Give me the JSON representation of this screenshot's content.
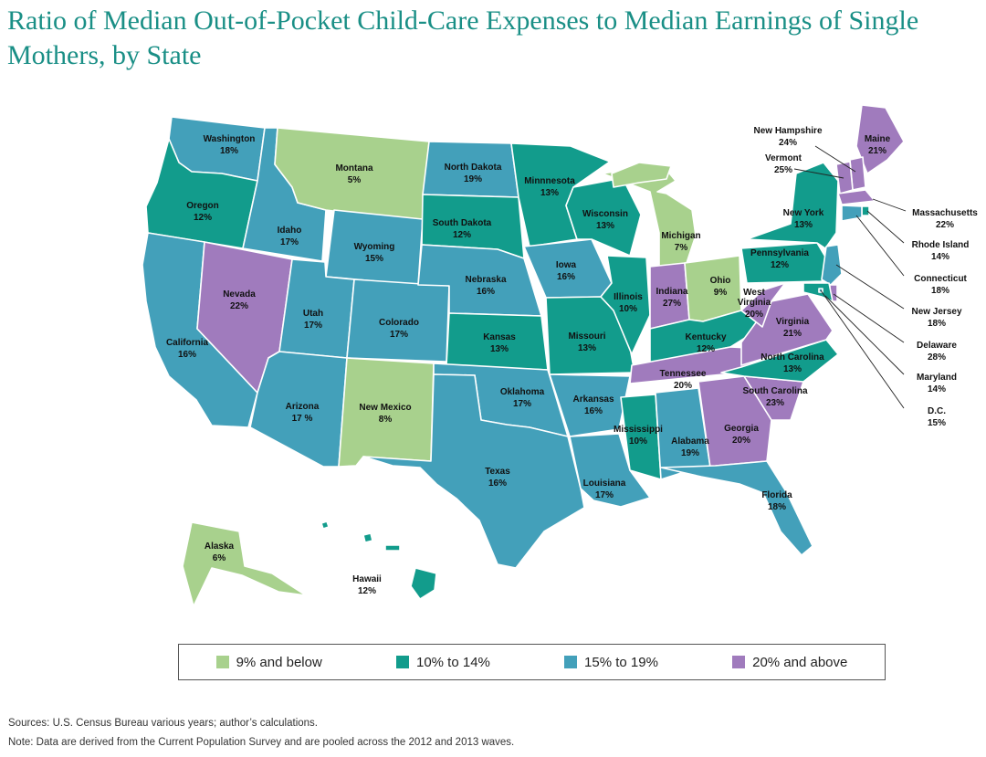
{
  "title": "Ratio of Median Out-of-Pocket Child-Care Expenses to Median Earnings of Single Mothers, by State",
  "colors": {
    "low": "#a8d18d",
    "mid_low": "#129c8c",
    "mid_high": "#43a0ba",
    "high": "#a07bbd"
  },
  "legend": [
    {
      "label": "9% and below",
      "color_key": "low"
    },
    {
      "label": "10% to 14%",
      "color_key": "mid_low"
    },
    {
      "label": "15% to 19%",
      "color_key": "mid_high"
    },
    {
      "label": "20% and above",
      "color_key": "high"
    }
  ],
  "states": [
    {
      "id": "WA",
      "name": "Washington",
      "value": "18%"
    },
    {
      "id": "OR",
      "name": "Oregon",
      "value": "12%"
    },
    {
      "id": "CA",
      "name": "California",
      "value": "16%"
    },
    {
      "id": "ID",
      "name": "Idaho",
      "value": "17%"
    },
    {
      "id": "NV",
      "name": "Nevada",
      "value": "22%"
    },
    {
      "id": "MT",
      "name": "Montana",
      "value": "5%"
    },
    {
      "id": "WY",
      "name": "Wyoming",
      "value": "15%"
    },
    {
      "id": "UT",
      "name": "Utah",
      "value": "17%"
    },
    {
      "id": "AZ",
      "name": "Arizona",
      "value": "17 %"
    },
    {
      "id": "CO",
      "name": "Colorado",
      "value": "17%"
    },
    {
      "id": "NM",
      "name": "New Mexico",
      "value": "8%"
    },
    {
      "id": "ND",
      "name": "North Dakota",
      "value": "19%"
    },
    {
      "id": "SD",
      "name": "South Dakota",
      "value": "12%"
    },
    {
      "id": "NE",
      "name": "Nebraska",
      "value": "16%"
    },
    {
      "id": "KS",
      "name": "Kansas",
      "value": "13%"
    },
    {
      "id": "OK",
      "name": "Oklahoma",
      "value": "17%"
    },
    {
      "id": "TX",
      "name": "Texas",
      "value": "16%"
    },
    {
      "id": "MN",
      "name": "Minnnesota",
      "value": "13%"
    },
    {
      "id": "IA",
      "name": "Iowa",
      "value": "16%"
    },
    {
      "id": "MO",
      "name": "Missouri",
      "value": "13%"
    },
    {
      "id": "AR",
      "name": "Arkansas",
      "value": "16%"
    },
    {
      "id": "LA",
      "name": "Louisiana",
      "value": "17%"
    },
    {
      "id": "WI",
      "name": "Wisconsin",
      "value": "13%"
    },
    {
      "id": "IL",
      "name": "Illinois",
      "value": "10%"
    },
    {
      "id": "MI",
      "name": "Michigan",
      "value": "7%"
    },
    {
      "id": "IN",
      "name": "Indiana",
      "value": "27%"
    },
    {
      "id": "OH",
      "name": "Ohio",
      "value": "9%"
    },
    {
      "id": "KY",
      "name": "Kentucky",
      "value": "12%"
    },
    {
      "id": "TN",
      "name": "Tennessee",
      "value": "20%"
    },
    {
      "id": "MS",
      "name": "Mississippi",
      "value": "10%"
    },
    {
      "id": "AL",
      "name": "Alabama",
      "value": "19%"
    },
    {
      "id": "GA",
      "name": "Georgia",
      "value": "20%"
    },
    {
      "id": "FL",
      "name": "Florida",
      "value": "18%"
    },
    {
      "id": "SC",
      "name": "South Carolina",
      "value": "23%"
    },
    {
      "id": "NC",
      "name": "North Carolina",
      "value": "13%"
    },
    {
      "id": "VA",
      "name": "Virginia",
      "value": "21%"
    },
    {
      "id": "WV",
      "name": "West Virginia",
      "value": "20%"
    },
    {
      "id": "PA",
      "name": "Pennsylvania",
      "value": "12%"
    },
    {
      "id": "NY",
      "name": "New York",
      "value": "13%"
    },
    {
      "id": "ME",
      "name": "Maine",
      "value": "21%"
    },
    {
      "id": "NH",
      "name": "New Hampshire",
      "value": "24%"
    },
    {
      "id": "VT",
      "name": "Vermont",
      "value": "25%"
    },
    {
      "id": "MA",
      "name": "Massachusetts",
      "value": "22%"
    },
    {
      "id": "RI",
      "name": "Rhode Island",
      "value": "14%"
    },
    {
      "id": "CT",
      "name": "Connecticut",
      "value": "18%"
    },
    {
      "id": "NJ",
      "name": "New Jersey",
      "value": "18%"
    },
    {
      "id": "DE",
      "name": "Delaware",
      "value": "28%"
    },
    {
      "id": "MD",
      "name": "Maryland",
      "value": "14%"
    },
    {
      "id": "DC",
      "name": "D.C.",
      "value": "15%"
    },
    {
      "id": "AK",
      "name": "Alaska",
      "value": "6%"
    },
    {
      "id": "HI",
      "name": "Hawaii",
      "value": "12%"
    }
  ],
  "footnotes": {
    "sources": "Sources: U.S. Census Bureau various years; author’s calculations.",
    "note": "Note: Data are derived from the Current Population Survey and are pooled across the 2012 and 2013 waves."
  }
}
